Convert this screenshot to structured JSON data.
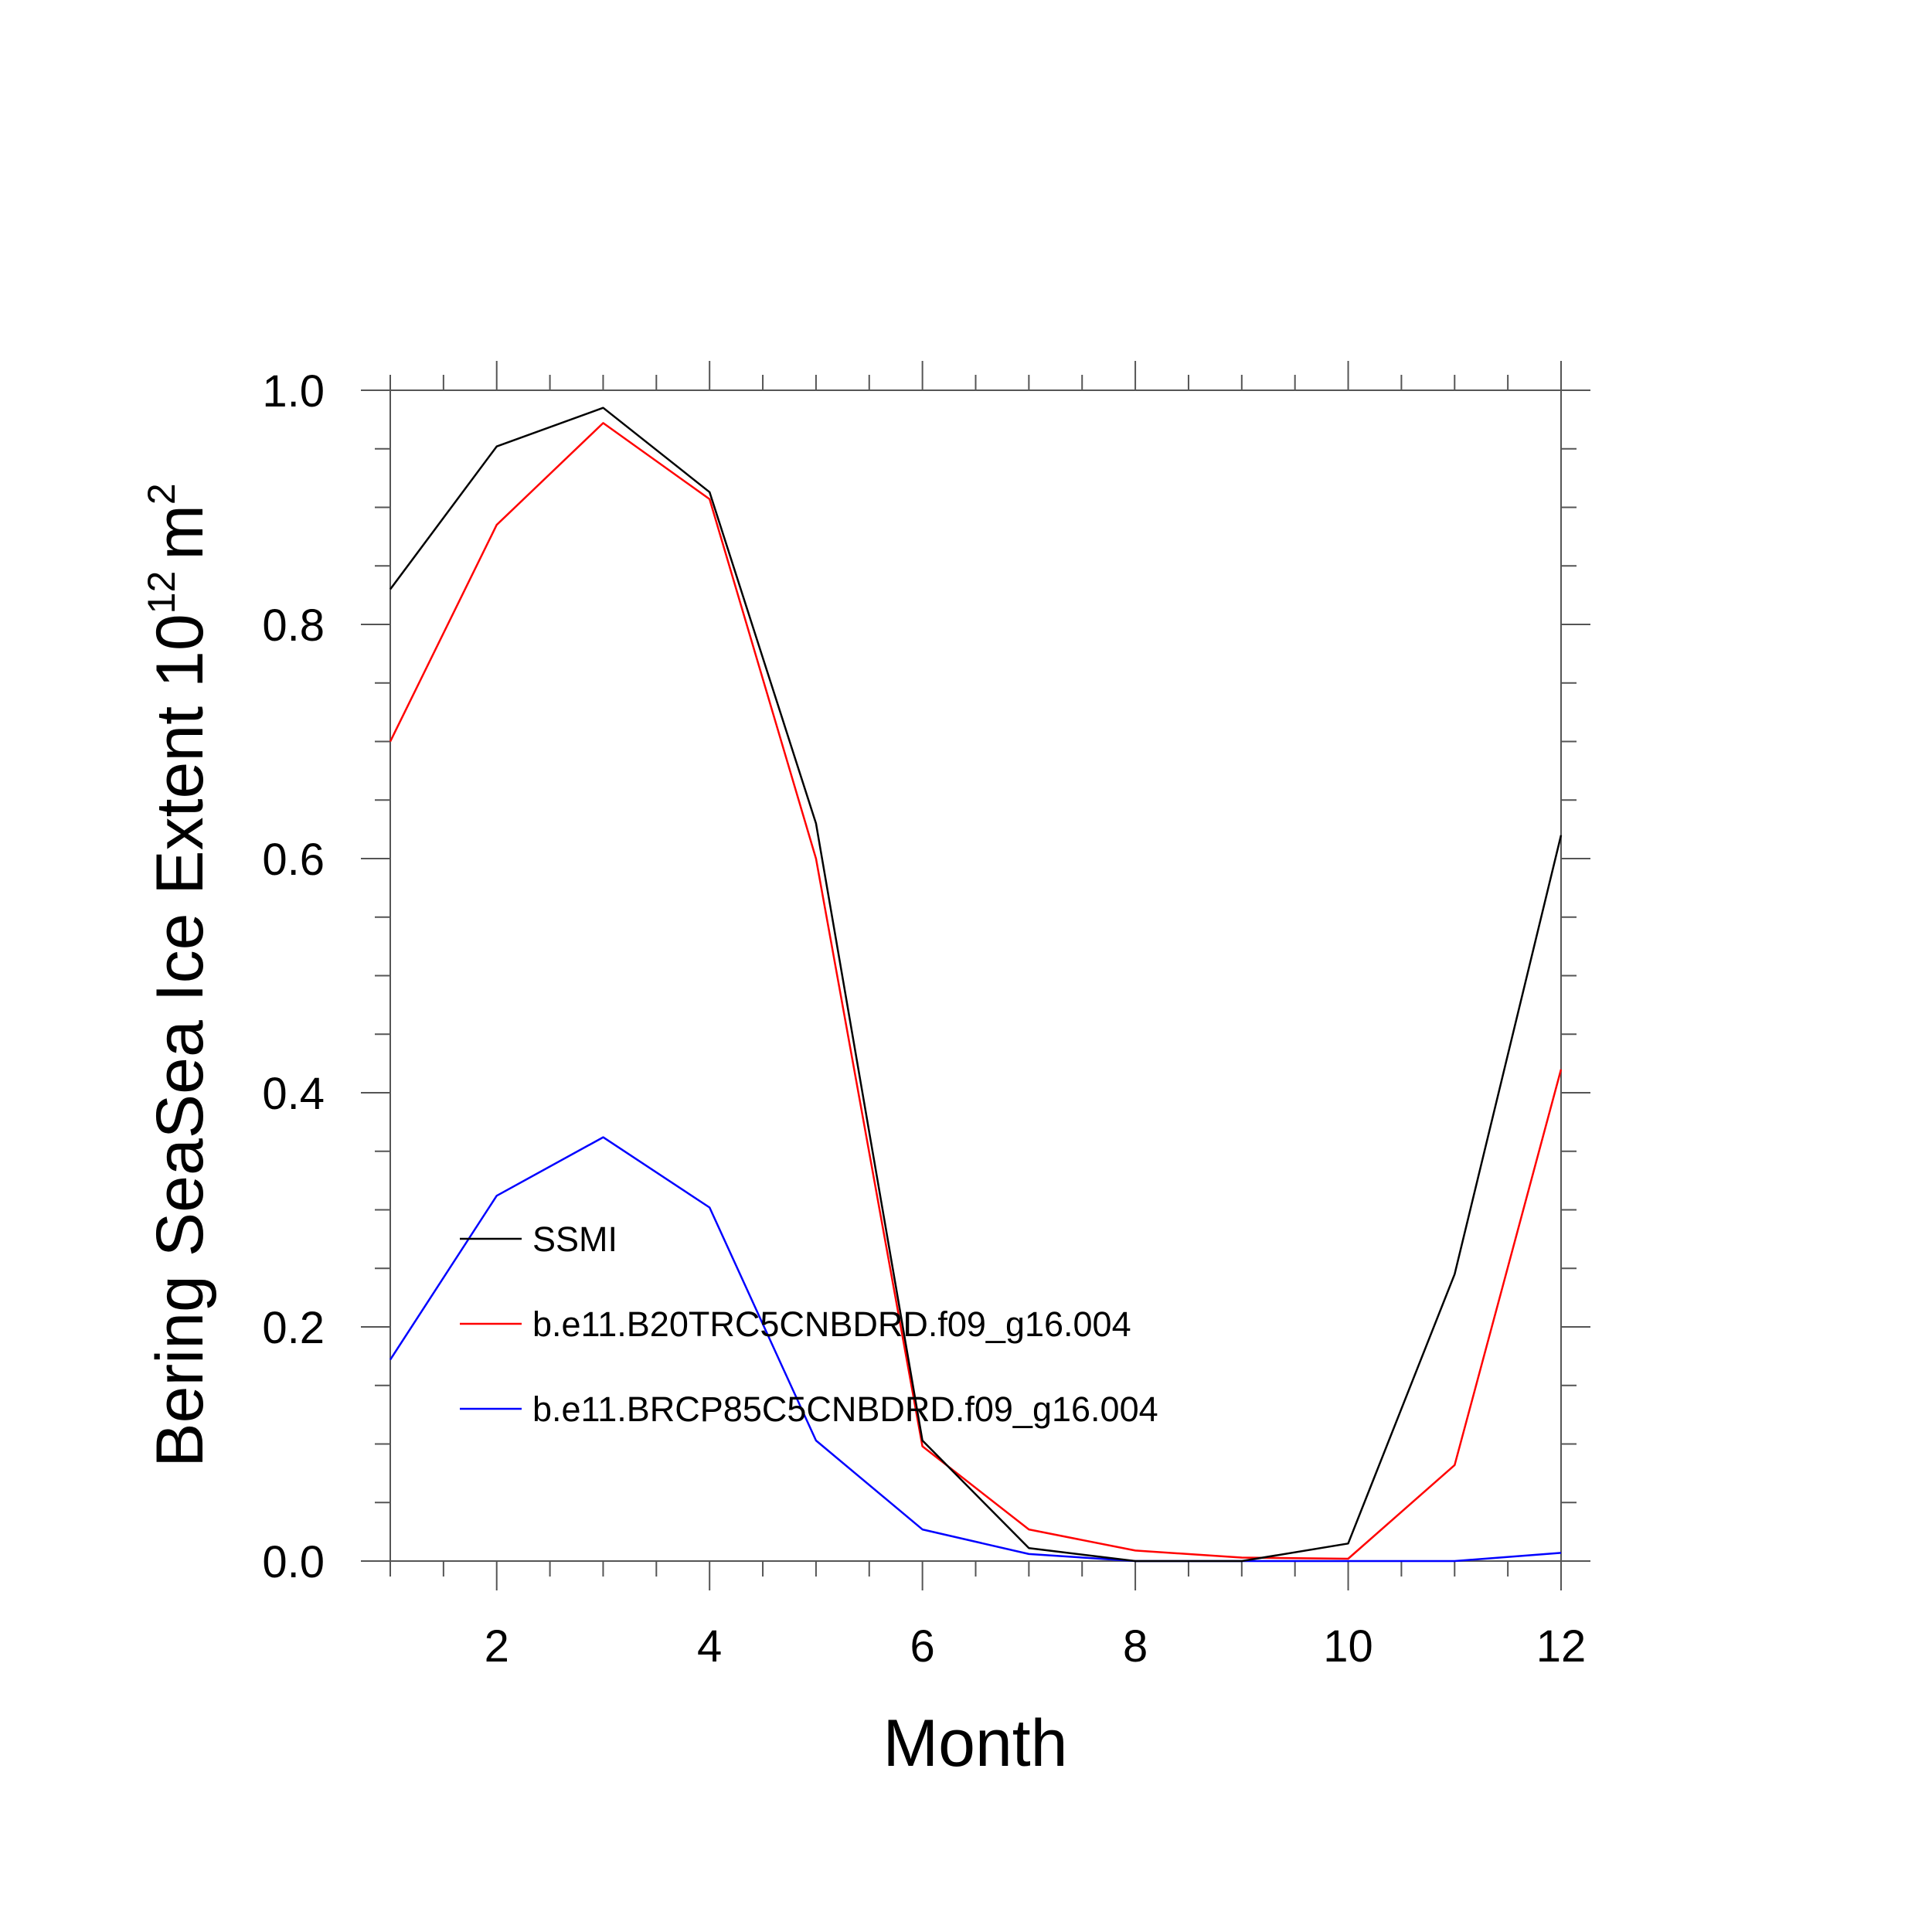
{
  "chart_data": {
    "type": "line",
    "title": "",
    "xlabel": "Month",
    "ylabel": {
      "main": "Bering SeaSea Ice Extent 10",
      "exponent": "12",
      "unit": "m",
      "unit_exponent": "2"
    },
    "xlim": [
      1,
      12
    ],
    "ylim": [
      0,
      1.0
    ],
    "x_ticks": [
      2,
      4,
      6,
      8,
      10,
      12
    ],
    "y_ticks": [
      "0.0",
      "0.2",
      "0.4",
      "0.6",
      "0.8",
      "1.0"
    ],
    "y_tick_values": [
      0,
      0.2,
      0.4,
      0.6,
      0.8,
      1.0
    ],
    "grid": false,
    "legend_position": "inside-lower-left",
    "x": [
      1,
      2,
      3,
      4,
      5,
      6,
      7,
      8,
      9,
      10,
      11,
      12
    ],
    "series": [
      {
        "name": "SSMI",
        "color": "#000000",
        "values": [
          0.83,
          0.952,
          0.985,
          0.913,
          0.63,
          0.103,
          0.011,
          0.0,
          0.0,
          0.015,
          0.245,
          0.62
        ]
      },
      {
        "name": "b.e11.B20TRC5CNBDRD.f09_g16.004",
        "color": "#ff0000",
        "values": [
          0.7,
          0.885,
          0.972,
          0.907,
          0.6,
          0.098,
          0.027,
          0.009,
          0.003,
          0.002,
          0.082,
          0.42
        ]
      },
      {
        "name": "b.e11.BRCP85C5CNBDRD.f09_g16.004",
        "color": "#0000ff",
        "values": [
          0.172,
          0.312,
          0.362,
          0.302,
          0.103,
          0.027,
          0.006,
          0.0,
          0.0,
          0.0,
          0.0,
          0.007
        ]
      }
    ]
  }
}
